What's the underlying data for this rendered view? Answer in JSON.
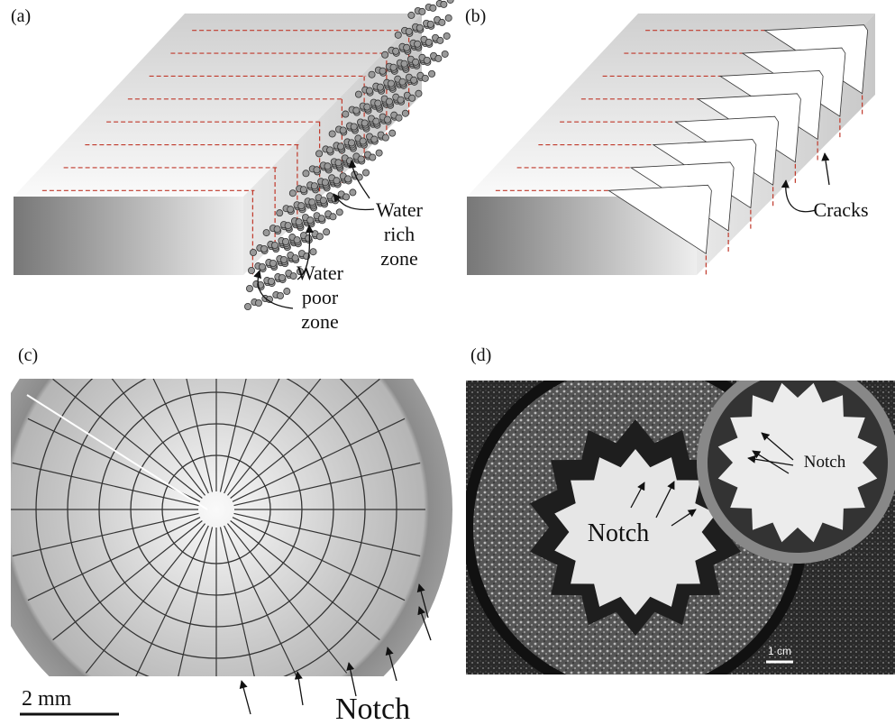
{
  "panels": [
    {
      "label": "(a)",
      "annotations": [
        [
          "Water",
          "rich",
          "zone"
        ],
        [
          "Water",
          "poor",
          "zone"
        ]
      ]
    },
    {
      "label": "(b)",
      "annotations": [
        [
          "Cracks"
        ]
      ]
    },
    {
      "label": "(c)",
      "annotations": [
        [
          "Notch"
        ]
      ],
      "scale_bar": "2 mm"
    },
    {
      "label": "(d)",
      "annotations": [
        [
          "Notch"
        ],
        [
          "Notch"
        ]
      ],
      "scale_bar": "1 cm"
    }
  ]
}
